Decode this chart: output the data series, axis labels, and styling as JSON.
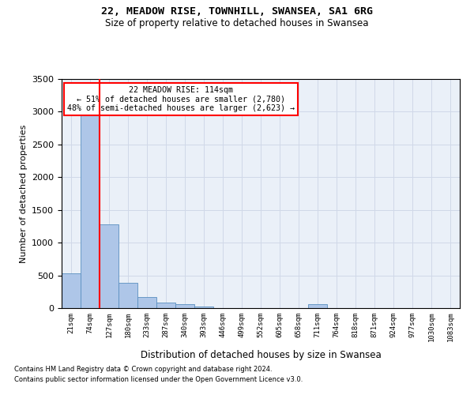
{
  "title1": "22, MEADOW RISE, TOWNHILL, SWANSEA, SA1 6RG",
  "title2": "Size of property relative to detached houses in Swansea",
  "xlabel": "Distribution of detached houses by size in Swansea",
  "ylabel": "Number of detached properties",
  "annotation_line1": "22 MEADOW RISE: 114sqm",
  "annotation_line2": "← 51% of detached houses are smaller (2,780)",
  "annotation_line3": "48% of semi-detached houses are larger (2,623) →",
  "footnote1": "Contains HM Land Registry data © Crown copyright and database right 2024.",
  "footnote2": "Contains public sector information licensed under the Open Government Licence v3.0.",
  "bar_labels": [
    "21sqm",
    "74sqm",
    "127sqm",
    "180sqm",
    "233sqm",
    "287sqm",
    "340sqm",
    "393sqm",
    "446sqm",
    "499sqm",
    "552sqm",
    "605sqm",
    "658sqm",
    "711sqm",
    "764sqm",
    "818sqm",
    "871sqm",
    "924sqm",
    "977sqm",
    "1030sqm",
    "1083sqm"
  ],
  "bar_values": [
    530,
    3000,
    1280,
    390,
    165,
    90,
    55,
    30,
    0,
    0,
    0,
    0,
    0,
    55,
    0,
    0,
    0,
    0,
    0,
    0,
    0
  ],
  "bar_color": "#aec6e8",
  "bar_edge_color": "#5a8fc0",
  "vline_x_index": 1.5,
  "vline_color": "red",
  "annotation_box_color": "red",
  "grid_color": "#d0d8e8",
  "background_color": "#eaf0f8",
  "ylim": [
    0,
    3500
  ],
  "yticks": [
    0,
    500,
    1000,
    1500,
    2000,
    2500,
    3000,
    3500
  ]
}
